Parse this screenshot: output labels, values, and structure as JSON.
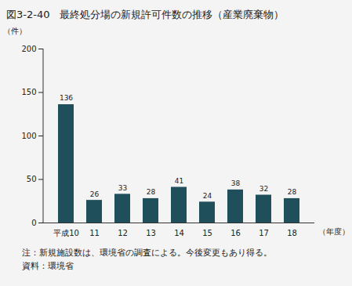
{
  "chart_data": {
    "type": "bar",
    "title": "図3-2-40　最終処分場の新規許可件数の推移（産業廃棄物）",
    "y_label": "（件）",
    "x_label": "（年度）",
    "categories": [
      "平成10",
      "11",
      "12",
      "13",
      "14",
      "15",
      "16",
      "17",
      "18"
    ],
    "values": [
      136,
      26,
      33,
      28,
      41,
      24,
      38,
      32,
      28
    ],
    "color": "#1f4f5b",
    "ylim": [
      0,
      200
    ],
    "yticks": [
      0,
      50,
      100,
      150,
      200
    ],
    "grid": false,
    "data_labels": true,
    "notes": [
      "注：新規施設数は、環境省の調査による。今後変更もあり得る。",
      "資料：環境省"
    ]
  }
}
